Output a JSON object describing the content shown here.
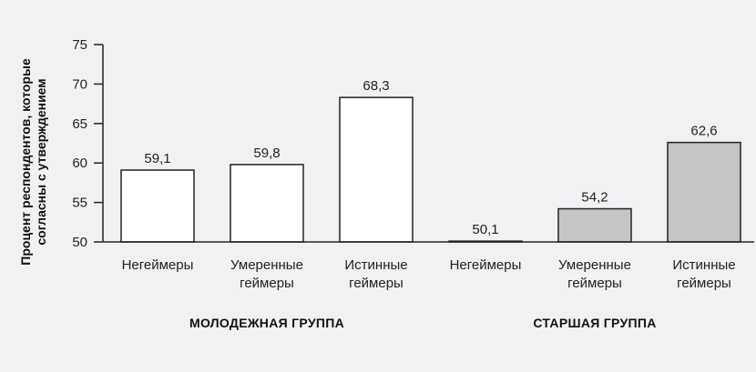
{
  "chart_data": {
    "type": "bar",
    "ylabel_lines": [
      "Процент респондентов, которые",
      "согласны с утверждением"
    ],
    "ylim": [
      50,
      75
    ],
    "yticks": [
      50,
      55,
      60,
      65,
      70,
      75
    ],
    "grid": false,
    "groups": [
      {
        "label": "МОЛОДЕЖНАЯ ГРУППА",
        "fill": "#ffffff"
      },
      {
        "label": "СТАРШАЯ ГРУППА",
        "fill": "#c4c5c7"
      }
    ],
    "bars": [
      {
        "group": 0,
        "category": [
          "Негеймеры"
        ],
        "value": 59.1,
        "value_label": "59,1"
      },
      {
        "group": 0,
        "category": [
          "Умеренные",
          "геймеры"
        ],
        "value": 59.8,
        "value_label": "59,8"
      },
      {
        "group": 0,
        "category": [
          "Истинные",
          "геймеры"
        ],
        "value": 68.3,
        "value_label": "68,3"
      },
      {
        "group": 1,
        "category": [
          "Негеймеры"
        ],
        "value": 50.1,
        "value_label": "50,1"
      },
      {
        "group": 1,
        "category": [
          "Умеренные",
          "геймеры"
        ],
        "value": 54.2,
        "value_label": "54,2"
      },
      {
        "group": 1,
        "category": [
          "Истинные",
          "геймеры"
        ],
        "value": 62.6,
        "value_label": "62,6"
      }
    ]
  },
  "colors": {
    "background": "#f0f1f3",
    "axis": "#222222",
    "bar_stroke": "#222222"
  }
}
